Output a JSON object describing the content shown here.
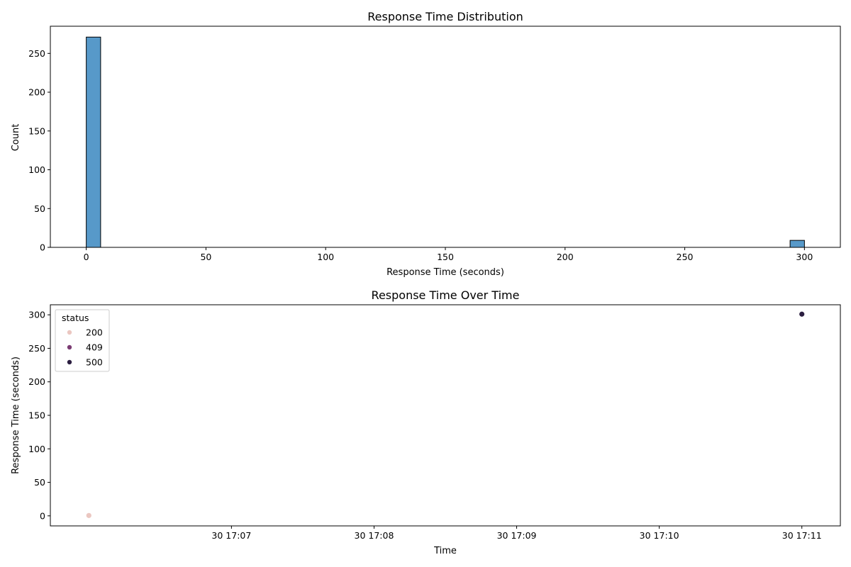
{
  "chart_data": [
    {
      "type": "bar",
      "title": "Response Time Distribution",
      "xlabel": "Response Time (seconds)",
      "ylabel": "Count",
      "xlim": [
        -15,
        315
      ],
      "ylim": [
        0,
        285
      ],
      "xticks": [
        0,
        50,
        100,
        150,
        200,
        250,
        300
      ],
      "yticks": [
        0,
        50,
        100,
        150,
        200,
        250
      ],
      "bar_color": "#5799c9",
      "edge_color": "#000000",
      "bins": [
        {
          "x0": 0,
          "x1": 6,
          "count": 271
        },
        {
          "x0": 294,
          "x1": 300,
          "count": 9
        }
      ],
      "grid": false
    },
    {
      "type": "scatter",
      "title": "Response Time Over Time",
      "xlabel": "Time",
      "ylabel": "Response Time (seconds)",
      "x_unit": "minutes after 17:06",
      "xlim": [
        -0.27,
        5.27
      ],
      "ylim": [
        -15,
        315
      ],
      "xticks": [
        {
          "value": 1,
          "label": "30 17:07"
        },
        {
          "value": 2,
          "label": "30 17:08"
        },
        {
          "value": 3,
          "label": "30 17:09"
        },
        {
          "value": 4,
          "label": "30 17:10"
        },
        {
          "value": 5,
          "label": "30 17:11"
        }
      ],
      "yticks": [
        0,
        50,
        100,
        150,
        200,
        250,
        300
      ],
      "legend": {
        "title": "status",
        "placement": "upper-left",
        "entries": [
          {
            "label": "200",
            "color": "#ebc7c1"
          },
          {
            "label": "409",
            "color": "#7b3c73"
          },
          {
            "label": "500",
            "color": "#2b1e40"
          }
        ]
      },
      "points": [
        {
          "x": 0.0,
          "y": 0.5,
          "status": "200",
          "color": "#ebc7c1"
        },
        {
          "x": 5.0,
          "y": 301,
          "status": "500",
          "color": "#2b1e40"
        }
      ],
      "grid": false
    }
  ]
}
